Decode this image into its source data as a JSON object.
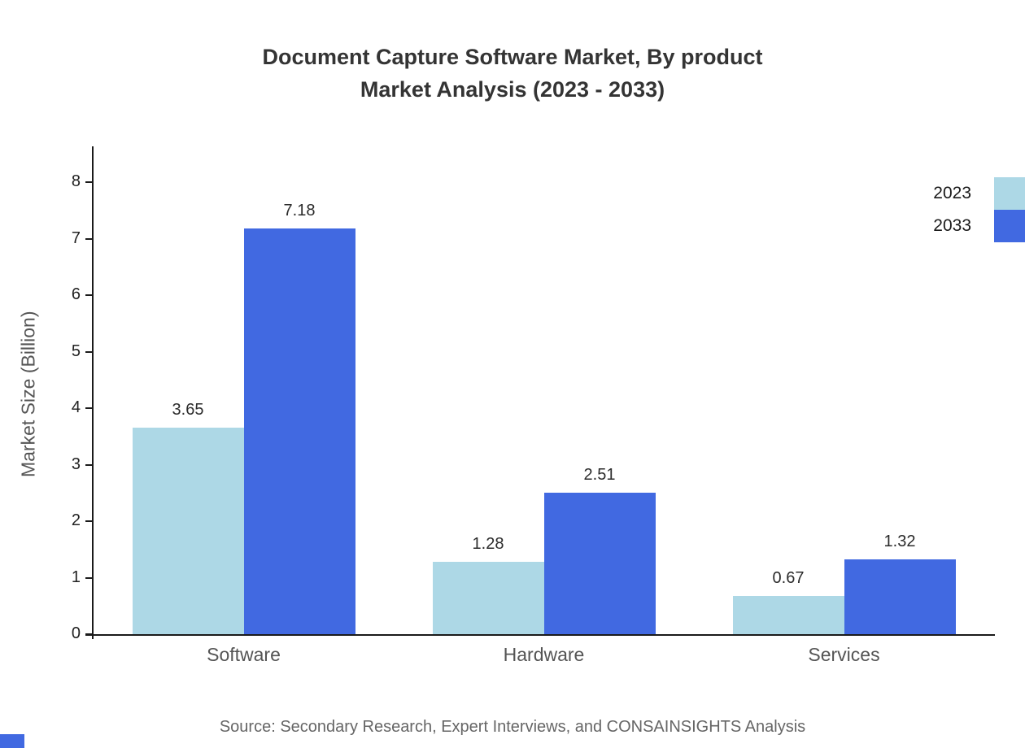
{
  "title": {
    "line1": "Document Capture Software Market, By product",
    "line2": "Market Analysis (2023 - 2033)"
  },
  "ylabel": "Market Size (Billion)",
  "source": "Source: Secondary Research, Expert Interviews, and CONSAINSIGHTS Analysis",
  "colors": {
    "series_2023": "#ADD8E6",
    "series_2033": "#4169E1",
    "axis": "#1a1a1a"
  },
  "legend": [
    {
      "label": "2023",
      "color": "#ADD8E6"
    },
    {
      "label": "2033",
      "color": "#4169E1"
    }
  ],
  "chart_data": {
    "type": "bar",
    "title": "Document Capture Software Market, By product Market Analysis (2023 - 2033)",
    "categories": [
      "Software",
      "Hardware",
      "Services"
    ],
    "series": [
      {
        "name": "2023",
        "color": "#ADD8E6",
        "values": [
          3.65,
          1.28,
          0.67
        ]
      },
      {
        "name": "2033",
        "color": "#4169E1",
        "values": [
          7.18,
          2.51,
          1.32
        ]
      }
    ],
    "xlabel": "",
    "ylabel": "Market Size (Billion)",
    "ylim": [
      0,
      8
    ],
    "yticks": [
      0,
      1,
      2,
      3,
      4,
      5,
      6,
      7,
      8
    ],
    "grid": false,
    "legend_position": "top-right",
    "value_labels": true
  }
}
